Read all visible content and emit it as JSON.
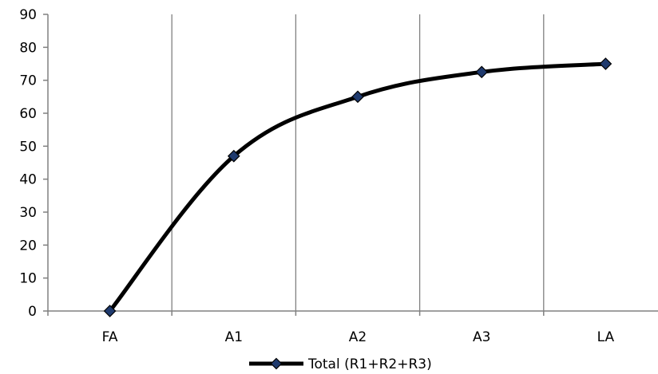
{
  "chart_data": {
    "type": "line",
    "categories": [
      "FA",
      "A1",
      "A2",
      "A3",
      "LA"
    ],
    "series": [
      {
        "name": "Total (R1+R2+R3)",
        "values": [
          0,
          47,
          65,
          72.5,
          75
        ],
        "color": "#000000",
        "marker": "diamond",
        "marker_color": "#1f3a6e"
      }
    ],
    "ylim": [
      0,
      90
    ],
    "yticks": [
      0,
      10,
      20,
      30,
      40,
      50,
      60,
      70,
      80,
      90
    ],
    "vertical_grid": true,
    "horizontal_grid": false,
    "legend_position": "bottom"
  }
}
